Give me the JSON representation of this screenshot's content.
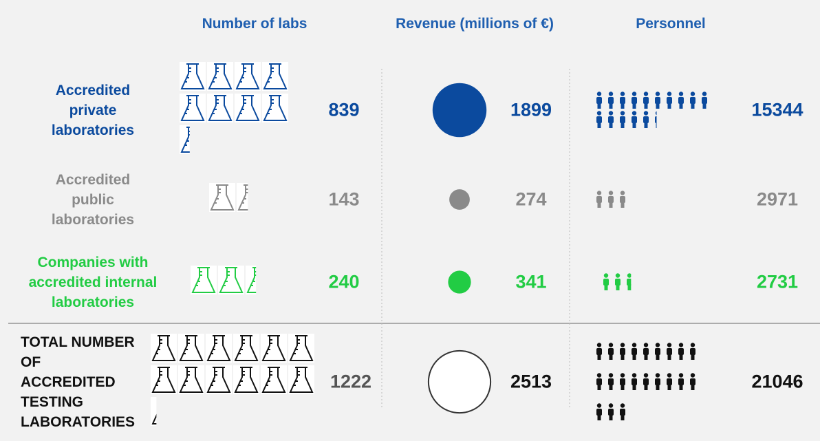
{
  "headers": [
    "Number of labs",
    "Revenue (millions of €)",
    "Personnel"
  ],
  "rows": [
    {
      "label_lines": [
        "Accredited",
        "private",
        "laboratories"
      ],
      "labs": 839,
      "revenue": 1899,
      "personnel": 15344,
      "color": "#0b4a9e"
    },
    {
      "label_lines": [
        "Accredited",
        "public",
        "laboratories"
      ],
      "labs": 143,
      "revenue": 274,
      "personnel": 2971,
      "color": "#8a8a8a"
    },
    {
      "label_lines": [
        "Companies with",
        "accredited internal",
        "laboratories"
      ],
      "labs": 240,
      "revenue": 341,
      "personnel": 2731,
      "color": "#22cc44"
    },
    {
      "label_lines": [
        "TOTAL NUMBER",
        "OF",
        "ACCREDITED",
        "TESTING",
        "LABORATORIES"
      ],
      "labs": 1222,
      "revenue": 2513,
      "personnel": 21046,
      "color": "#111111"
    }
  ]
}
